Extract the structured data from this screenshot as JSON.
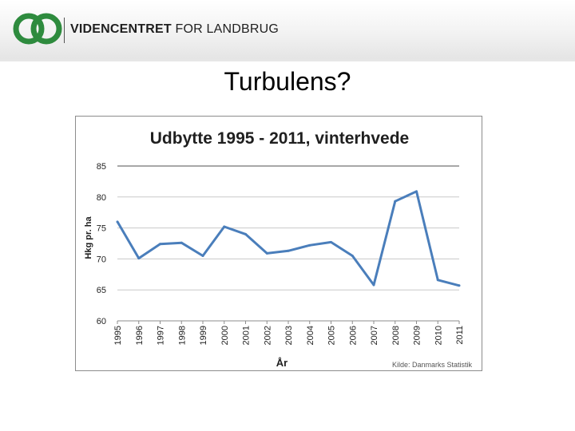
{
  "header": {
    "org_name_bold": "VIDENCENTRET",
    "org_name_rest": "FOR LANDBRUG",
    "logo_colors": {
      "green": "#2e8b3e",
      "text": "#1f1f1f"
    }
  },
  "slide": {
    "title": "Turbulens?"
  },
  "chart_data": {
    "type": "line",
    "title": "Udbytte 1995 - 2011, vinterhvede",
    "xlabel": "År",
    "ylabel": "Hkg pr. ha",
    "source": "Kilde: Danmarks Statistik",
    "x": [
      1995,
      1996,
      1997,
      1998,
      1999,
      2000,
      2001,
      2002,
      2003,
      2004,
      2005,
      2006,
      2007,
      2008,
      2009,
      2010,
      2011
    ],
    "x_tick_labels": [
      "1995",
      "1996",
      "1997",
      "1998",
      "1999",
      "2000",
      "2001",
      "2002",
      "2003",
      "2004",
      "2005",
      "2006",
      "2007",
      "2008",
      "2009",
      "2010",
      "2011"
    ],
    "y_tick_labels": [
      "85",
      "80",
      "75",
      "70",
      "65",
      "60"
    ],
    "series": [
      {
        "values": [
          76.0,
          70.1,
          72.4,
          72.6,
          70.5,
          75.2,
          74.0,
          70.9,
          71.3,
          72.2,
          72.7,
          70.5,
          65.8,
          79.3,
          80.9,
          66.6,
          65.7
        ],
        "color": "#4a7ebb"
      }
    ],
    "ylim": [
      60,
      85
    ],
    "grid": true,
    "legend": "none"
  }
}
